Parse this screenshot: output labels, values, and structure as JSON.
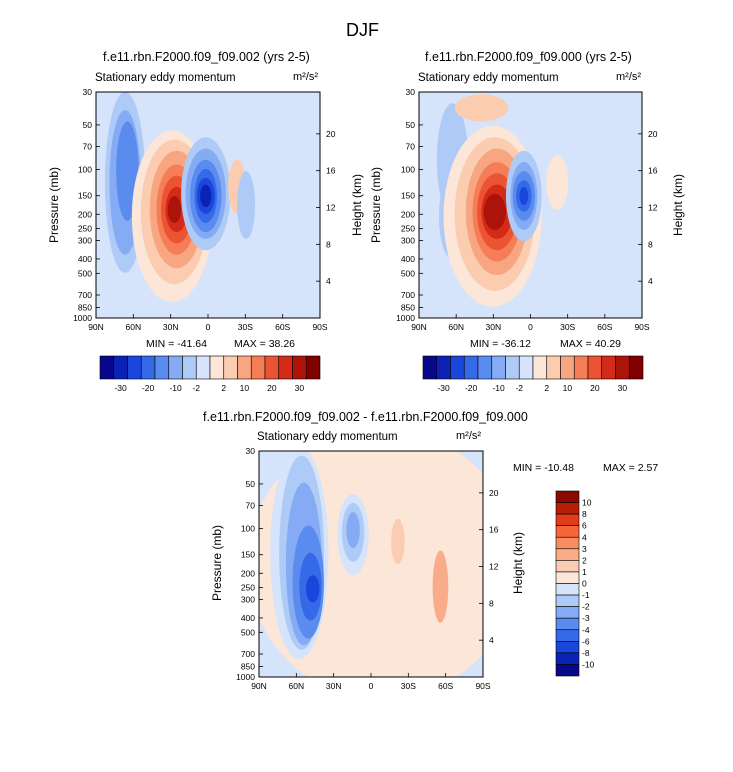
{
  "season": "DJF",
  "chart_data": [
    {
      "type": "heatmap",
      "title": "f.e11.rbn.F2000.f09_f09.002 (yrs 2-5)",
      "subtitle": "Stationary eddy momentum",
      "units": "m²/s²",
      "xlabel": "",
      "ylabel": "Pressure (mb)",
      "ylabel_right": "Height (km)",
      "x_ticks": [
        "90N",
        "60N",
        "30N",
        "0",
        "30S",
        "60S",
        "90S"
      ],
      "y_ticks": [
        "30",
        "50",
        "70",
        "100",
        "150",
        "200",
        "250",
        "300",
        "400",
        "500",
        "700",
        "850",
        "1000"
      ],
      "height_ticks": [
        "20",
        "16",
        "12",
        "8",
        "4"
      ],
      "min_label": "MIN = -41.64",
      "max_label": "MAX = 38.26",
      "min": -41.64,
      "max": 38.26
    },
    {
      "type": "heatmap",
      "title": "f.e11.rbn.F2000.f09_f09.000 (yrs 2-5)",
      "subtitle": "Stationary eddy momentum",
      "units": "m²/s²",
      "xlabel": "",
      "ylabel": "Pressure (mb)",
      "ylabel_right": "Height (km)",
      "x_ticks": [
        "90N",
        "60N",
        "30N",
        "0",
        "30S",
        "60S",
        "90S"
      ],
      "y_ticks": [
        "30",
        "50",
        "70",
        "100",
        "150",
        "200",
        "250",
        "300",
        "400",
        "500",
        "700",
        "850",
        "1000"
      ],
      "height_ticks": [
        "20",
        "16",
        "12",
        "8",
        "4"
      ],
      "min_label": "MIN = -36.12",
      "max_label": "MAX = 40.29",
      "min": -36.12,
      "max": 40.29
    },
    {
      "type": "heatmap",
      "title": "f.e11.rbn.F2000.f09_f09.002 - f.e11.rbn.F2000.f09_f09.000",
      "subtitle": "Stationary eddy momentum",
      "units": "m²/s²",
      "xlabel": "",
      "ylabel": "Pressure (mb)",
      "ylabel_right": "Height (km)",
      "x_ticks": [
        "90N",
        "60N",
        "30N",
        "0",
        "30S",
        "60S",
        "90S"
      ],
      "y_ticks": [
        "30",
        "50",
        "70",
        "100",
        "150",
        "200",
        "250",
        "300",
        "400",
        "500",
        "700",
        "850",
        "1000"
      ],
      "height_ticks": [
        "20",
        "16",
        "12",
        "8",
        "4"
      ],
      "min_label": "MIN = -10.48",
      "max_label": "MAX =   2.57",
      "min": -10.48,
      "max": 2.57
    }
  ],
  "colorbar_main": {
    "labels": [
      "-30",
      "-20",
      "-10",
      "-2",
      "2",
      "10",
      "20",
      "30"
    ],
    "colors": [
      "#08088a",
      "#0b23b4",
      "#1a46dc",
      "#3569e8",
      "#5a8cef",
      "#84abf3",
      "#aecaf6",
      "#d5e4fa",
      "#fbe6d8",
      "#fbccb0",
      "#f8a682",
      "#f57d57",
      "#ec5332",
      "#d32b18",
      "#ac1409",
      "#800000"
    ]
  },
  "colorbar_diff": {
    "labels": [
      "10",
      "8",
      "6",
      "4",
      "3",
      "2",
      "1",
      "0",
      "-1",
      "-2",
      "-3",
      "-4",
      "-6",
      "-8",
      "-10"
    ],
    "colors": [
      "#8a0a00",
      "#b91d07",
      "#e03c18",
      "#f5663a",
      "#f88c62",
      "#f9ac8a",
      "#fbcbb2",
      "#fbe6d8",
      "#d5e4fa",
      "#aecaf6",
      "#84abf3",
      "#5a8cef",
      "#3569e8",
      "#1a46dc",
      "#0b23b4",
      "#08088a"
    ]
  }
}
